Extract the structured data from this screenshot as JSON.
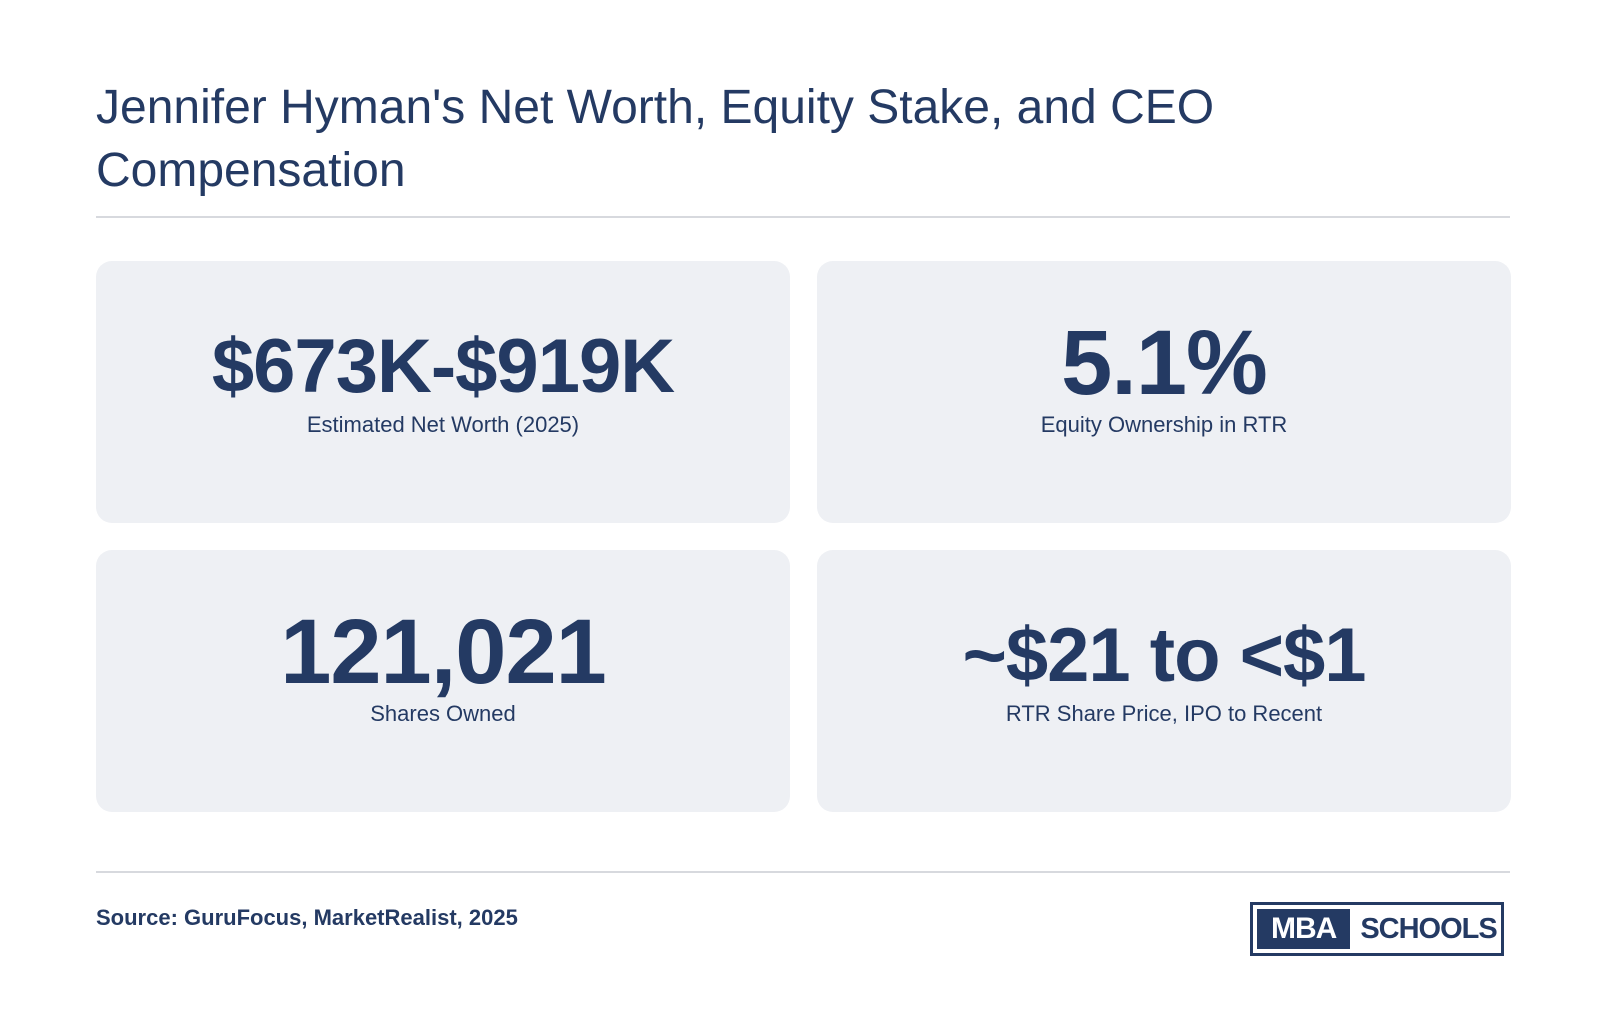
{
  "title": "Jennifer Hyman's Net Worth, Equity Stake, and CEO Compensation",
  "cards": [
    {
      "value": "$673K-$919K",
      "label": "Estimated Net Worth (2025)"
    },
    {
      "value": "5.1%",
      "label": "Equity Ownership in RTR"
    },
    {
      "value": "121,021",
      "label": "Shares Owned"
    },
    {
      "value": "~$21 to <$1",
      "label": "RTR Share Price, IPO to Recent"
    }
  ],
  "footer": {
    "source": "Source: GuruFocus, MarketRealist, 2025",
    "logo": {
      "mba": "MBA",
      "schools": "SCHOOLS"
    }
  },
  "colors": {
    "primary": "#243a63",
    "card_background": "#eef0f4",
    "divider": "#d7d9de"
  }
}
